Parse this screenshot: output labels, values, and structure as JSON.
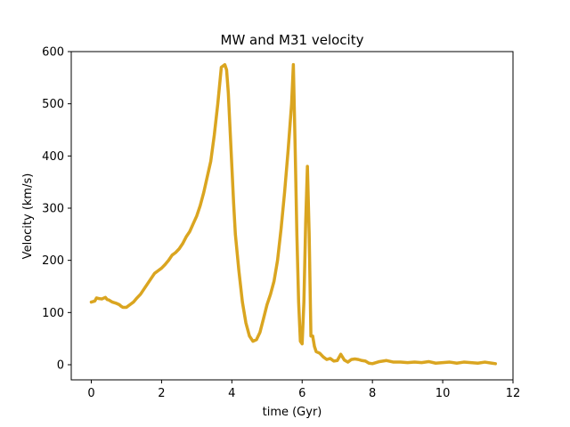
{
  "chart_data": {
    "type": "line",
    "title": "MW and M31 velocity",
    "xlabel": "time (Gyr)",
    "ylabel": "Velocity (km/s)",
    "xlim": [
      -0.57,
      12.0
    ],
    "ylim": [
      -29,
      600
    ],
    "xticks": [
      0,
      2,
      4,
      6,
      8,
      10,
      12
    ],
    "yticks": [
      0,
      100,
      200,
      300,
      400,
      500,
      600
    ],
    "grid": false,
    "legend": "none",
    "series": [
      {
        "color": "#DAA520",
        "x": [
          0.0,
          0.1,
          0.15,
          0.2,
          0.3,
          0.4,
          0.45,
          0.5,
          0.6,
          0.7,
          0.8,
          0.85,
          0.9,
          1.0,
          1.1,
          1.2,
          1.3,
          1.4,
          1.5,
          1.6,
          1.7,
          1.8,
          1.9,
          2.0,
          2.1,
          2.2,
          2.3,
          2.4,
          2.5,
          2.6,
          2.7,
          2.8,
          2.9,
          3.0,
          3.1,
          3.2,
          3.3,
          3.4,
          3.5,
          3.6,
          3.7,
          3.8,
          3.85,
          3.9,
          3.95,
          4.0,
          4.05,
          4.1,
          4.2,
          4.3,
          4.4,
          4.5,
          4.6,
          4.7,
          4.8,
          4.9,
          5.0,
          5.1,
          5.2,
          5.3,
          5.4,
          5.5,
          5.6,
          5.7,
          5.75,
          5.8,
          5.85,
          5.9,
          5.95,
          6.0,
          6.05,
          6.1,
          6.15,
          6.2,
          6.25,
          6.3,
          6.35,
          6.4,
          6.5,
          6.6,
          6.7,
          6.8,
          6.9,
          7.0,
          7.1,
          7.2,
          7.3,
          7.4,
          7.5,
          7.6,
          7.7,
          7.8,
          7.9,
          8.0,
          8.2,
          8.4,
          8.6,
          8.8,
          9.0,
          9.2,
          9.4,
          9.6,
          9.8,
          10.0,
          10.2,
          10.4,
          10.6,
          10.8,
          11.0,
          11.2,
          11.4,
          11.5
        ],
        "y": [
          120,
          122,
          128,
          127,
          126,
          129,
          125,
          124,
          120,
          118,
          115,
          112,
          110,
          110,
          115,
          120,
          128,
          135,
          145,
          155,
          165,
          175,
          180,
          185,
          192,
          200,
          210,
          215,
          222,
          232,
          245,
          255,
          270,
          285,
          305,
          330,
          360,
          390,
          440,
          500,
          570,
          575,
          565,
          520,
          450,
          380,
          310,
          250,
          180,
          120,
          80,
          55,
          45,
          48,
          62,
          88,
          115,
          135,
          160,
          200,
          260,
          330,
          410,
          500,
          575,
          420,
          250,
          120,
          45,
          40,
          120,
          270,
          380,
          250,
          55,
          55,
          35,
          25,
          22,
          15,
          10,
          12,
          7,
          8,
          20,
          9,
          5,
          10,
          11,
          10,
          8,
          7,
          3,
          2,
          6,
          8,
          5,
          5,
          4,
          5,
          4,
          6,
          3,
          4,
          5,
          3,
          5,
          4,
          3,
          5,
          3,
          2
        ]
      }
    ]
  }
}
